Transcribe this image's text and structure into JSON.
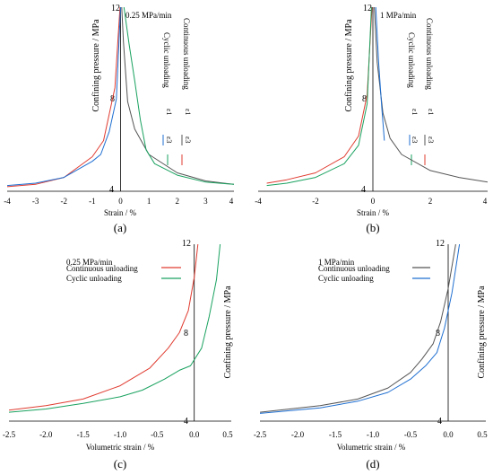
{
  "chart_data": [
    {
      "panel_label": "(a)",
      "type": "line",
      "rate_label": "0.25 MPa/min",
      "xlabel": "Strain / %",
      "ylabel": "Confining pressure / MPa",
      "xlim": [
        -4,
        4
      ],
      "ylim": [
        4,
        12
      ],
      "xticks": [
        "-4",
        "-3",
        "-2",
        "-1",
        "0",
        "1",
        "2",
        "3",
        "4"
      ],
      "yticks": [
        "4",
        "8",
        "12"
      ],
      "legend": {
        "group_labels": [
          "Continuous unloading",
          "Cyclic unloading"
        ],
        "symbols": [
          "ε1",
          "ε1",
          "ε3",
          "ε3"
        ]
      },
      "series": [
        {
          "color": "#555555",
          "x": [
            0.04,
            0.1,
            0.25,
            0.5,
            1.0,
            2.0,
            3.0,
            4.0
          ],
          "y": [
            12.0,
            10.5,
            7.9,
            6.7,
            5.6,
            4.8,
            4.45,
            4.3
          ]
        },
        {
          "color": "#e03c31",
          "x": [
            -0.02,
            -0.2,
            -0.6,
            -1.0,
            -2.0,
            -3.0,
            -4.0
          ],
          "y": [
            12.0,
            8.5,
            6.2,
            5.5,
            4.6,
            4.3,
            4.2
          ]
        },
        {
          "color": "#1f6fd1",
          "x": [
            0.0,
            -0.15,
            -0.4,
            -0.7,
            -1.0,
            -2.0,
            -3.0,
            -4.0
          ],
          "y": [
            12.0,
            8.0,
            6.6,
            5.6,
            5.3,
            4.6,
            4.35,
            4.25
          ]
        },
        {
          "color": "#1aa260",
          "x": [
            0.12,
            0.3,
            0.5,
            0.7,
            0.9,
            1.2,
            2.0,
            3.0,
            4.0
          ],
          "y": [
            12.0,
            10.4,
            8.8,
            7.1,
            5.8,
            5.2,
            4.7,
            4.4,
            4.3
          ]
        }
      ]
    },
    {
      "panel_label": "(b)",
      "type": "line",
      "rate_label": "1 MPa/min",
      "xlabel": "Strain / %",
      "ylabel": "Confining pressure / MPa",
      "xlim": [
        -4,
        4
      ],
      "ylim": [
        4,
        12
      ],
      "xticks": [
        "-4",
        "-2",
        "0",
        "2",
        "4"
      ],
      "yticks": [
        "4",
        "8",
        "12"
      ],
      "legend": {
        "group_labels": [
          "Continuous unloading",
          "Cyclic unloading"
        ],
        "symbols": [
          "ε1",
          "ε1",
          "ε3",
          "ε3"
        ]
      },
      "series": [
        {
          "color": "#555555",
          "x": [
            0.05,
            0.15,
            0.35,
            0.6,
            1.0,
            2.0,
            3.0,
            4.0
          ],
          "y": [
            12.0,
            9.6,
            7.4,
            6.3,
            5.6,
            4.9,
            4.6,
            4.4
          ]
        },
        {
          "color": "#e03c31",
          "x": [
            -0.03,
            -0.2,
            -0.5,
            -1.0,
            -2.0,
            -3.0,
            -3.7
          ],
          "y": [
            12.0,
            8.2,
            6.4,
            5.5,
            4.8,
            4.5,
            4.35
          ]
        },
        {
          "color": "#1f6fd1",
          "x": [
            0.1,
            0.2,
            0.3,
            0.4
          ],
          "y": [
            12.0,
            9.6,
            7.8,
            6.2
          ]
        },
        {
          "color": "#1aa260",
          "x": [
            -0.05,
            -0.2,
            -0.5,
            -1.0,
            -2.0,
            -3.0,
            -3.7
          ],
          "y": [
            12.0,
            7.8,
            6.0,
            5.2,
            4.6,
            4.35,
            4.25
          ]
        }
      ]
    },
    {
      "panel_label": "(c)",
      "type": "line",
      "rate_label": "0.25 MPa/min",
      "xlabel": "Volumetric strain / %",
      "ylabel": "Confining pressure / MPa",
      "xlim": [
        -2.5,
        0.5
      ],
      "ylim": [
        4,
        12
      ],
      "xticks": [
        "-2.5",
        "-2.0",
        "-1.5",
        "-1.0",
        "-0.5",
        "0.0",
        "0.5"
      ],
      "yticks": [
        "4",
        "8",
        "12"
      ],
      "legend": {
        "entries": [
          "Continuous unloading",
          "Cyclic unloading"
        ],
        "colors": [
          "#e03c31",
          "#1aa260"
        ]
      },
      "series": [
        {
          "name": "Continuous unloading",
          "color": "#e03c31",
          "x": [
            0.05,
            0.0,
            -0.08,
            -0.2,
            -0.35,
            -0.6,
            -1.0,
            -1.5,
            -2.0,
            -2.5
          ],
          "y": [
            12.0,
            10.5,
            9.0,
            8.0,
            7.3,
            6.4,
            5.6,
            5.0,
            4.7,
            4.5
          ]
        },
        {
          "name": "Cyclic unloading",
          "color": "#1aa260",
          "x": [
            0.35,
            0.3,
            0.2,
            0.1,
            -0.05,
            -0.2,
            -0.4,
            -0.7,
            -1.0,
            -1.5,
            -2.0,
            -2.5
          ],
          "y": [
            12.0,
            10.4,
            8.7,
            7.3,
            6.5,
            6.3,
            5.9,
            5.4,
            5.1,
            4.8,
            4.55,
            4.4
          ]
        }
      ]
    },
    {
      "panel_label": "(d)",
      "type": "line",
      "rate_label": "1 MPa/min",
      "xlabel": "Volumetric strain / %",
      "ylabel": "Confining pressure / MPa",
      "xlim": [
        -2.5,
        0.5
      ],
      "ylim": [
        4,
        12
      ],
      "xticks": [
        "-2.5",
        "-2.0",
        "-1.5",
        "-1.0",
        "-0.5",
        "0.0",
        "0.5"
      ],
      "yticks": [
        "4",
        "8",
        "12"
      ],
      "legend": {
        "entries": [
          "Continuous unloading",
          "Cyclic unloading"
        ],
        "colors": [
          "#555555",
          "#1f6fd1"
        ]
      },
      "series": [
        {
          "name": "Continuous unloading",
          "color": "#555555",
          "x": [
            0.1,
            0.0,
            -0.1,
            -0.2,
            -0.35,
            -0.5,
            -0.8,
            -1.2,
            -1.7,
            -2.5
          ],
          "y": [
            12.0,
            10.0,
            8.5,
            7.5,
            6.8,
            6.2,
            5.5,
            5.0,
            4.7,
            4.4
          ]
        },
        {
          "name": "Cyclic unloading",
          "color": "#1f6fd1",
          "x": [
            0.15,
            0.05,
            -0.05,
            -0.15,
            -0.3,
            -0.5,
            -0.8,
            -1.2,
            -1.7,
            -2.5
          ],
          "y": [
            12.0,
            9.8,
            8.2,
            7.1,
            6.5,
            5.9,
            5.3,
            4.9,
            4.6,
            4.35
          ]
        }
      ]
    }
  ]
}
